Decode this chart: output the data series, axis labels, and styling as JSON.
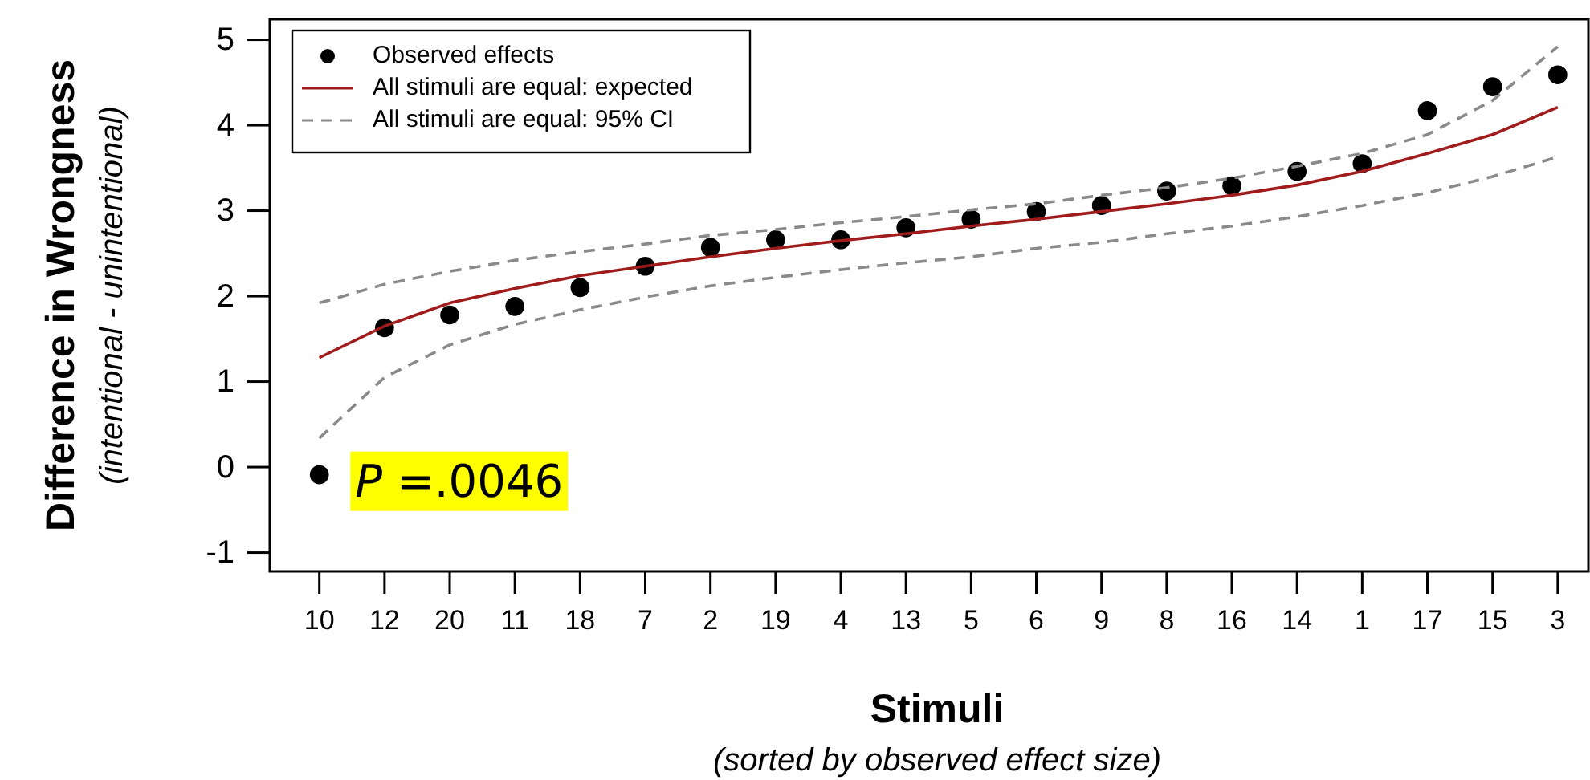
{
  "chart_data": {
    "type": "line",
    "categories": [
      "10",
      "12",
      "20",
      "11",
      "18",
      "7",
      "2",
      "19",
      "4",
      "13",
      "5",
      "6",
      "9",
      "8",
      "16",
      "14",
      "1",
      "17",
      "15",
      "3"
    ],
    "series": [
      {
        "name": "Observed effects",
        "type": "scatter",
        "color": "#000000",
        "marker": "circle",
        "values": [
          -0.09,
          1.63,
          1.78,
          1.88,
          2.1,
          2.35,
          2.57,
          2.66,
          2.66,
          2.8,
          2.9,
          2.99,
          3.06,
          3.23,
          3.29,
          3.46,
          3.55,
          4.17,
          4.45,
          4.59
        ]
      },
      {
        "name": "All stimuli are equal: expected",
        "color": "#a01c1c",
        "line_style": "solid",
        "values": [
          1.28,
          1.65,
          1.92,
          2.09,
          2.24,
          2.35,
          2.46,
          2.56,
          2.65,
          2.73,
          2.82,
          2.9,
          2.99,
          3.08,
          3.18,
          3.3,
          3.46,
          3.67,
          3.89,
          4.21
        ]
      },
      {
        "name": "All stimuli are equal: 95% CI",
        "color": "#8a8a8a",
        "line_style": "dashed",
        "values": [
          1.92,
          2.14,
          2.29,
          2.42,
          2.52,
          2.61,
          2.71,
          2.78,
          2.86,
          2.93,
          3.01,
          3.08,
          3.18,
          3.27,
          3.38,
          3.52,
          3.67,
          3.89,
          4.29,
          4.92
        ]
      },
      {
        "color": "#8a8a8a",
        "line_style": "dashed",
        "values": [
          0.34,
          1.05,
          1.43,
          1.67,
          1.84,
          1.99,
          2.12,
          2.22,
          2.31,
          2.39,
          2.46,
          2.56,
          2.63,
          2.73,
          2.82,
          2.93,
          3.06,
          3.21,
          3.4,
          3.63
        ]
      }
    ],
    "ylim": [
      -1.22,
      5.24
    ],
    "yticks": [
      -1,
      0,
      1,
      2,
      3,
      4,
      5
    ],
    "xlabel": "Stimuli\n(sorted by observed effect size)",
    "ylabel": "Difference in Wrongness\n(intentional - unintentional)",
    "annotations": [
      "P =.0046"
    ],
    "legend": "top left",
    "grid": false
  }
}
